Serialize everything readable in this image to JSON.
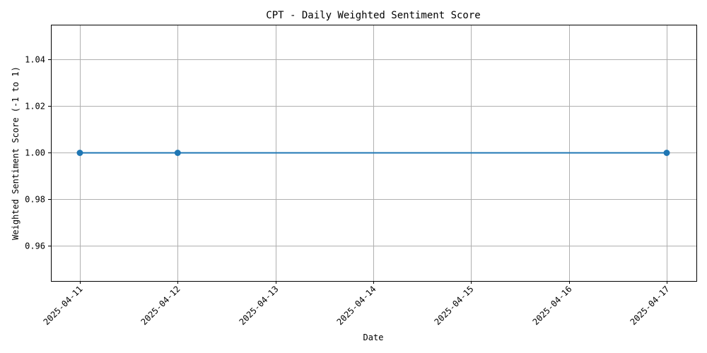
{
  "chart_data": {
    "type": "line",
    "title": "CPT - Daily Weighted Sentiment Score",
    "xlabel": "Date",
    "ylabel": "Weighted Sentiment Score (-1 to 1)",
    "x_ticks": [
      "2025-04-11",
      "2025-04-12",
      "2025-04-13",
      "2025-04-14",
      "2025-04-15",
      "2025-04-16",
      "2025-04-17"
    ],
    "y_ticks": [
      0.96,
      0.98,
      1.0,
      1.02,
      1.04
    ],
    "y_tick_labels": [
      "0.96",
      "0.98",
      "1.00",
      "1.02",
      "1.04"
    ],
    "ylim": [
      0.945,
      1.055
    ],
    "grid": true,
    "series": [
      {
        "points": [
          {
            "x": "2025-04-11",
            "y": 1.0
          },
          {
            "x": "2025-04-12",
            "y": 1.0
          },
          {
            "x": "2025-04-17",
            "y": 1.0
          }
        ],
        "color": "#1f77b4",
        "marker": "circle"
      }
    ]
  }
}
